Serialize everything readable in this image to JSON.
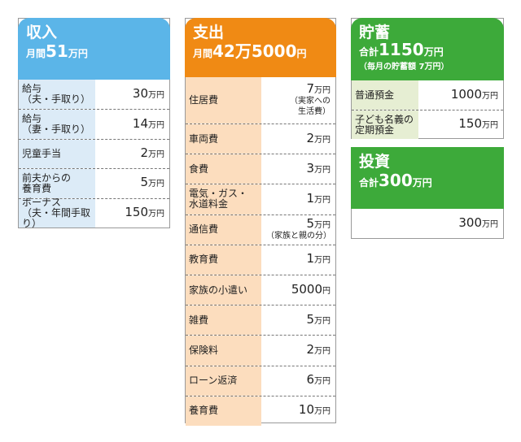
{
  "colors": {
    "income": "#5BB5E8",
    "income_label_bg": "#DCEBF7",
    "expense": "#F08A14",
    "expense_label_bg": "#FCDDBE",
    "savings": "#3DAA3A",
    "savings_label_bg": "#E6EED3"
  },
  "income": {
    "title": "収入",
    "subtitle_prefix": "月間",
    "subtitle_amount": "51",
    "subtitle_unit": "万円",
    "rows": [
      {
        "label": "給与\n（夫・手取り）",
        "value": "30",
        "unit": "万円"
      },
      {
        "label": "給与\n（妻・手取り）",
        "value": "14",
        "unit": "万円"
      },
      {
        "label": "児童手当",
        "value": "2",
        "unit": "万円"
      },
      {
        "label": "前夫からの\n養育費",
        "value": "5",
        "unit": "万円"
      },
      {
        "label": "ボーナス\n（夫・年間手取り）",
        "value": "150",
        "unit": "万円"
      }
    ]
  },
  "expense": {
    "title": "支出",
    "subtitle_prefix": "月間",
    "subtitle_amount": "42万5000",
    "subtitle_unit": "円",
    "rows": [
      {
        "label": "住居費",
        "value": "7",
        "unit": "万円",
        "note": "（実家への\n生活費）"
      },
      {
        "label": "車両費",
        "value": "2",
        "unit": "万円"
      },
      {
        "label": "食費",
        "value": "3",
        "unit": "万円"
      },
      {
        "label": "電気・ガス・\n水道料金",
        "value": "1",
        "unit": "万円"
      },
      {
        "label": "通信費",
        "value": "5",
        "unit": "万円",
        "note": "（家族と親の分）"
      },
      {
        "label": "教育費",
        "value": "1",
        "unit": "万円"
      },
      {
        "label": "家族の小遣い",
        "value": "5000",
        "unit": "円"
      },
      {
        "label": "雑費",
        "value": "5",
        "unit": "万円"
      },
      {
        "label": "保険料",
        "value": "2",
        "unit": "万円"
      },
      {
        "label": "ローン返済",
        "value": "6",
        "unit": "万円"
      },
      {
        "label": "養育費",
        "value": "10",
        "unit": "万円"
      }
    ]
  },
  "savings": {
    "title": "貯蓄",
    "subtitle_prefix": "合計",
    "subtitle_amount": "1150",
    "subtitle_unit": "万円",
    "note": "（毎月の貯蓄額 7万円）",
    "rows": [
      {
        "label": "普通預金",
        "value": "1000",
        "unit": "万円"
      },
      {
        "label": "子ども名義の\n定期預金",
        "value": "150",
        "unit": "万円"
      }
    ]
  },
  "investment": {
    "title": "投資",
    "subtitle_prefix": "合計",
    "subtitle_amount": "300",
    "subtitle_unit": "万円",
    "rows": [
      {
        "label": "",
        "value": "300",
        "unit": "万円"
      }
    ]
  }
}
